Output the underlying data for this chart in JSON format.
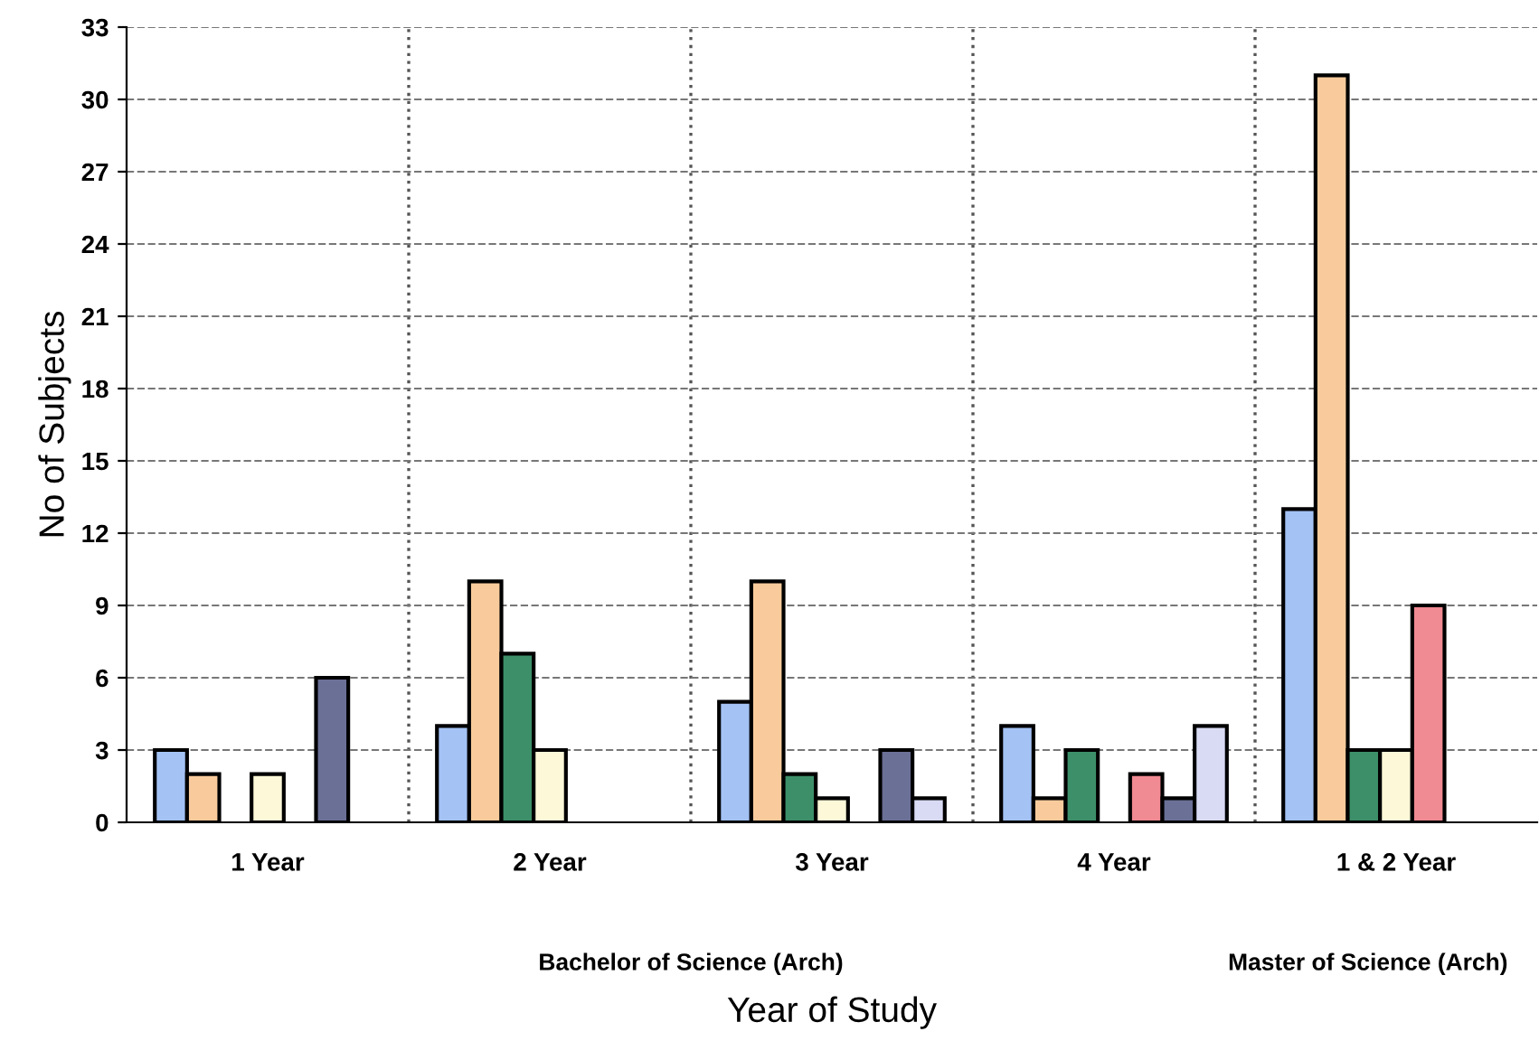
{
  "chart_data": {
    "type": "bar",
    "xlabel": "Year of Study",
    "ylabel": "No of Subjects",
    "categories": [
      "1 Year",
      "2 Year",
      "3 Year",
      "4 Year",
      "1 & 2 Year"
    ],
    "series": [
      {
        "color": "#a4c2f4",
        "values": [
          3,
          4,
          5,
          4,
          13
        ]
      },
      {
        "color": "#f9cb9c",
        "values": [
          2,
          10,
          10,
          1,
          31
        ]
      },
      {
        "color": "#3d8f6a",
        "values": [
          null,
          7,
          2,
          3,
          3
        ]
      },
      {
        "color": "#fdf8d8",
        "values": [
          2,
          3,
          1,
          null,
          3
        ]
      },
      {
        "color": "#f08a93",
        "values": [
          null,
          null,
          null,
          2,
          9
        ]
      },
      {
        "color": "#6b7096",
        "values": [
          6,
          null,
          3,
          1,
          null
        ]
      },
      {
        "color": "#d9dbf5",
        "values": [
          null,
          null,
          1,
          4,
          null
        ]
      }
    ],
    "ylim": [
      0,
      33
    ],
    "yticks": [
      0,
      3,
      6,
      9,
      12,
      15,
      18,
      21,
      24,
      27,
      30,
      33
    ],
    "grid": true,
    "annotations": [
      "Bachelor of Science (Arch)",
      "Master of Science (Arch)"
    ]
  }
}
